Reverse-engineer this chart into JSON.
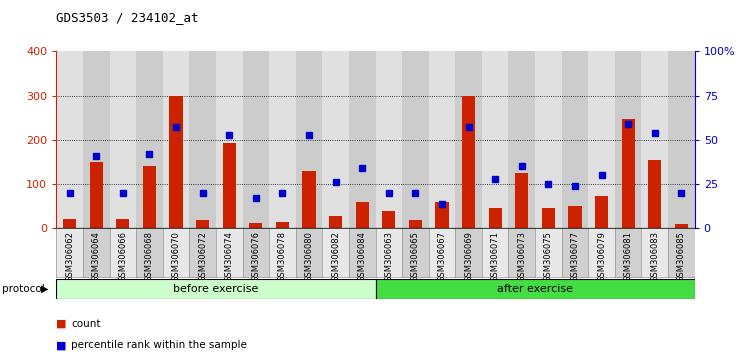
{
  "title": "GDS3503 / 234102_at",
  "samples": [
    "GSM306062",
    "GSM306064",
    "GSM306066",
    "GSM306068",
    "GSM306070",
    "GSM306072",
    "GSM306074",
    "GSM306076",
    "GSM306078",
    "GSM306080",
    "GSM306082",
    "GSM306084",
    "GSM306063",
    "GSM306065",
    "GSM306067",
    "GSM306069",
    "GSM306071",
    "GSM306073",
    "GSM306075",
    "GSM306077",
    "GSM306079",
    "GSM306081",
    "GSM306083",
    "GSM306085"
  ],
  "counts": [
    22,
    150,
    22,
    140,
    300,
    18,
    192,
    12,
    15,
    130,
    28,
    60,
    40,
    18,
    60,
    300,
    45,
    125,
    45,
    50,
    72,
    248,
    155,
    10
  ],
  "percentiles": [
    20,
    41,
    20,
    42,
    57,
    20,
    53,
    17,
    20,
    53,
    26,
    34,
    20,
    20,
    14,
    57,
    28,
    35,
    25,
    24,
    30,
    59,
    54,
    20
  ],
  "before_count": 12,
  "after_count": 12,
  "before_label": "before exercise",
  "after_label": "after exercise",
  "protocol_label": "protocol",
  "legend_count": "count",
  "legend_percentile": "percentile rank within the sample",
  "bar_color": "#cc2200",
  "dot_color": "#0000cc",
  "before_color": "#ccffcc",
  "after_color": "#44dd44",
  "ylim_left": [
    0,
    400
  ],
  "ylim_right": [
    0,
    100
  ],
  "yticks_left": [
    0,
    100,
    200,
    300,
    400
  ],
  "yticks_right": [
    0,
    25,
    50,
    75,
    100
  ],
  "ytick_labels_right": [
    "0",
    "25",
    "50",
    "75",
    "100%"
  ],
  "grid_values": [
    100,
    200,
    300
  ],
  "col_bg_even": "#e0e0e0",
  "col_bg_odd": "#cccccc"
}
